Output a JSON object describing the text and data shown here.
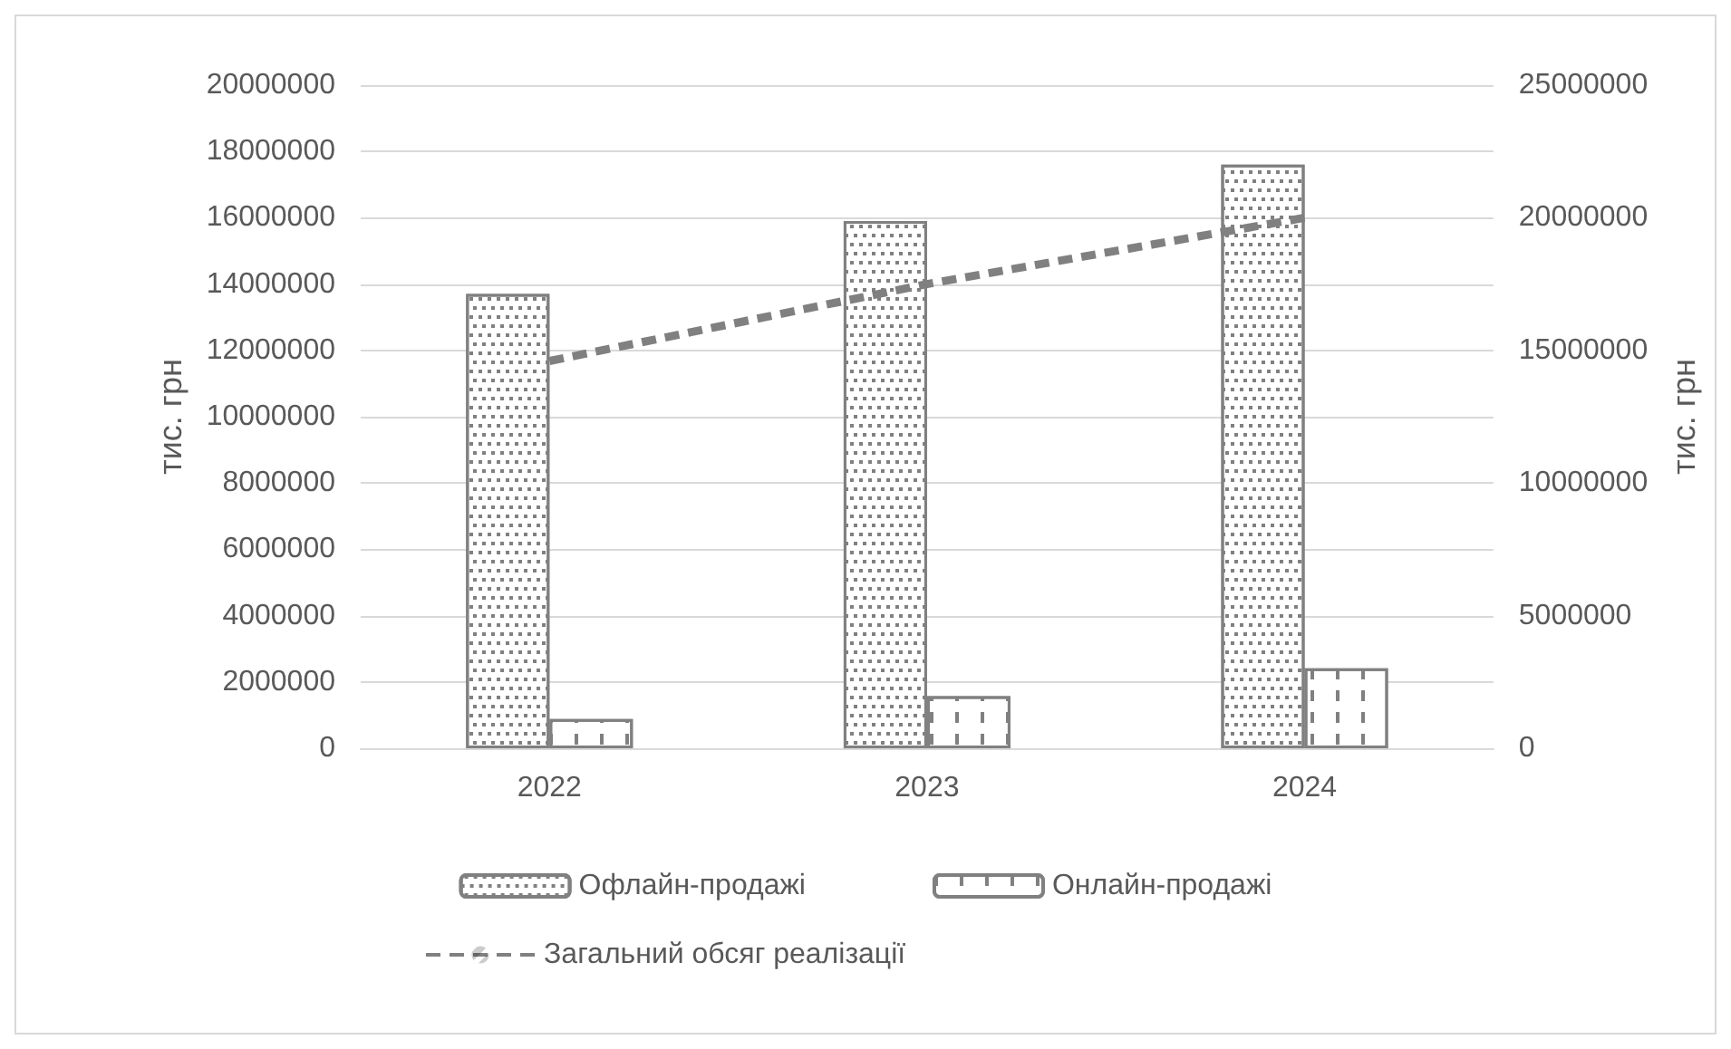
{
  "chart_data": {
    "type": "bar",
    "categories": [
      "2022",
      "2023",
      "2024"
    ],
    "series": [
      {
        "name": "Офлайн-продажі",
        "color": "#808080",
        "values": [
          13700000,
          15900000,
          17600000
        ]
      },
      {
        "name": "Онлайн-продажі",
        "color": "#808080",
        "values": [
          880000,
          1570000,
          2410000
        ]
      },
      {
        "name": "Загальний обсяг реалізації",
        "type": "line",
        "axis": "y2",
        "color": "#808080",
        "line_style": "dashed",
        "values": [
          14600000,
          17500000,
          20000000
        ]
      }
    ],
    "ylabel": "тис. грн",
    "y2label": "тис. грн",
    "ylim": [
      0,
      20000000
    ],
    "yticks": [
      0,
      2000000,
      4000000,
      6000000,
      8000000,
      10000000,
      12000000,
      14000000,
      16000000,
      18000000,
      20000000
    ],
    "y2lim": [
      0,
      25000000
    ],
    "y2ticks": [
      0,
      5000000,
      10000000,
      15000000,
      20000000,
      25000000
    ],
    "grid": "y",
    "legend": "bottom"
  }
}
